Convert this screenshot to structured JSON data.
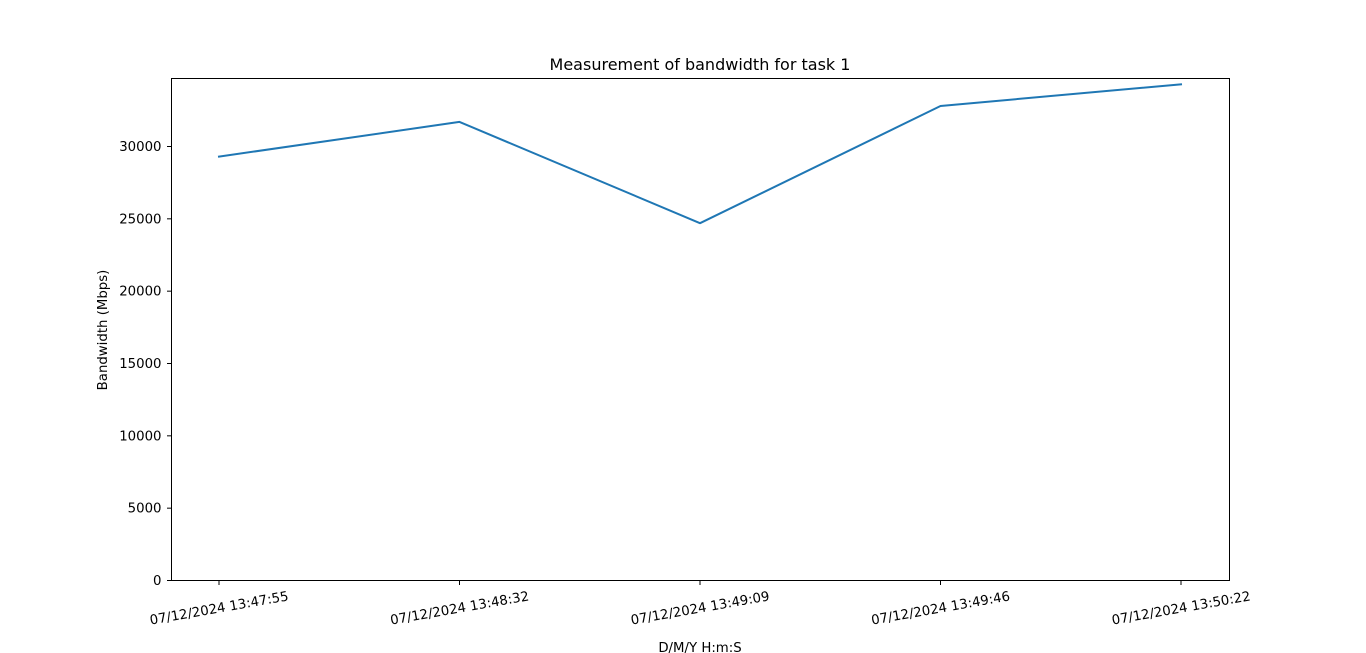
{
  "chart_data": {
    "type": "line",
    "title": "Measurement of bandwidth for task 1",
    "xlabel": "D/M/Y H:m:S",
    "ylabel": "Bandwidth (Mbps)",
    "categories": [
      "07/12/2024 13:47:55",
      "07/12/2024 13:48:32",
      "07/12/2024 13:49:09",
      "07/12/2024 13:49:46",
      "07/12/2024 13:50:22"
    ],
    "series": [
      {
        "values": [
          29300,
          31700,
          24700,
          32800,
          34300
        ],
        "color": "#1f77b4"
      }
    ],
    "ylim": [
      0,
      34700
    ],
    "yticks": [
      0,
      5000,
      10000,
      15000,
      20000,
      25000,
      30000
    ],
    "grid": false,
    "legend": "none"
  }
}
